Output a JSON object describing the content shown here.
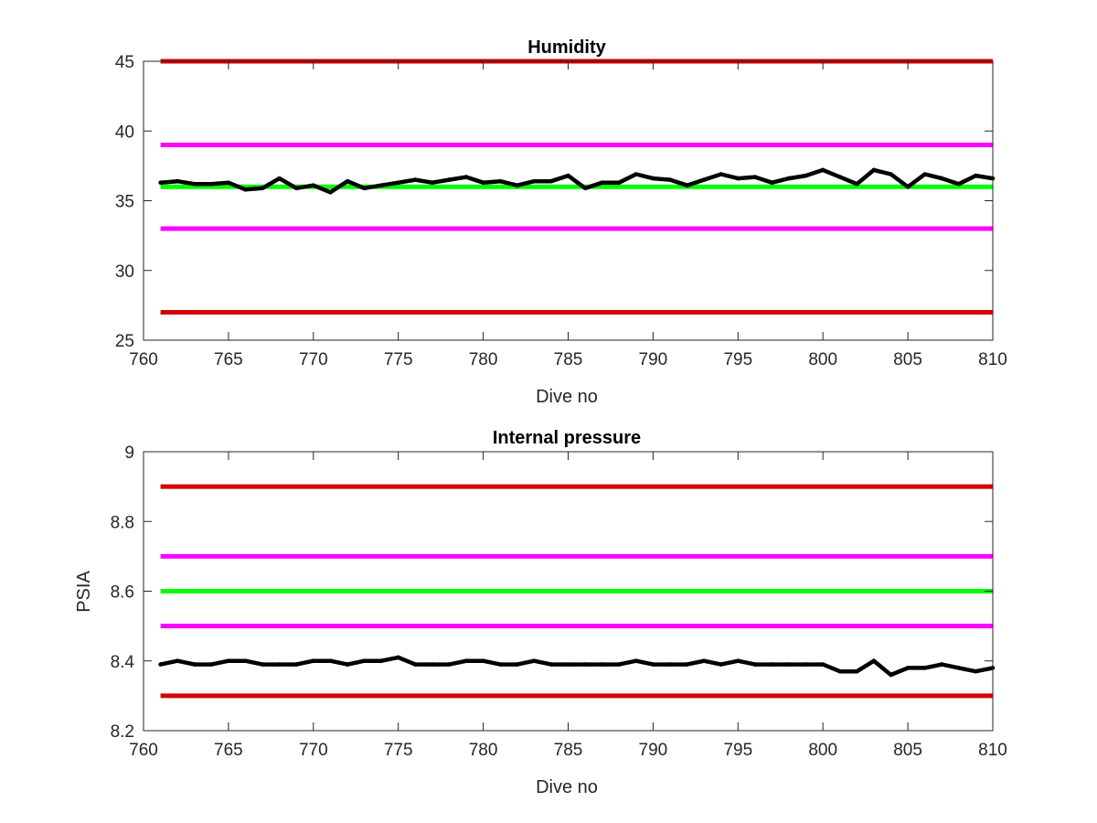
{
  "colors": {
    "background": "#ffffff",
    "axis": "#262626",
    "data_line": "#000000",
    "red_limit": "#d40000",
    "magenta_limit": "#ff00ff",
    "green_target": "#00ff00"
  },
  "chart_data": [
    {
      "type": "line",
      "title": "Humidity",
      "xlabel": "Dive no",
      "ylabel": "",
      "xlim": [
        760,
        810
      ],
      "ylim": [
        25,
        45
      ],
      "xticks": [
        760,
        765,
        770,
        775,
        780,
        785,
        790,
        795,
        800,
        805,
        810
      ],
      "yticks": [
        25,
        30,
        35,
        40,
        45
      ],
      "grid": false,
      "legend": "none",
      "reference_lines": [
        {
          "name": "upper-red-limit",
          "y": 45,
          "color": "#d40000",
          "x": [
            761,
            810
          ]
        },
        {
          "name": "upper-magenta-limit",
          "y": 39,
          "color": "#ff00ff",
          "x": [
            761,
            810
          ]
        },
        {
          "name": "green-target",
          "y": 36,
          "color": "#00ff00",
          "x": [
            761,
            810
          ]
        },
        {
          "name": "lower-magenta-limit",
          "y": 33,
          "color": "#ff00ff",
          "x": [
            761,
            810
          ]
        },
        {
          "name": "lower-red-limit",
          "y": 27,
          "color": "#d40000",
          "x": [
            761,
            810
          ]
        }
      ],
      "series": [
        {
          "color": "#000000",
          "x": [
            761,
            762,
            763,
            764,
            765,
            766,
            767,
            768,
            769,
            770,
            771,
            772,
            773,
            774,
            775,
            776,
            777,
            778,
            779,
            780,
            781,
            782,
            783,
            784,
            785,
            786,
            787,
            788,
            789,
            790,
            791,
            792,
            793,
            794,
            795,
            796,
            797,
            798,
            799,
            800,
            801,
            802,
            803,
            804,
            805,
            806,
            807,
            808,
            809,
            810
          ],
          "y": [
            36.3,
            36.4,
            36.2,
            36.2,
            36.3,
            35.8,
            35.9,
            36.6,
            35.9,
            36.1,
            35.6,
            36.4,
            35.9,
            36.1,
            36.3,
            36.5,
            36.3,
            36.5,
            36.7,
            36.3,
            36.4,
            36.1,
            36.4,
            36.4,
            36.8,
            35.9,
            36.3,
            36.3,
            36.9,
            36.6,
            36.5,
            36.1,
            36.5,
            36.9,
            36.6,
            36.7,
            36.3,
            36.6,
            36.8,
            37.2,
            36.7,
            36.2,
            37.2,
            36.9,
            36.0,
            36.9,
            36.6,
            36.2,
            36.8,
            36.6
          ]
        }
      ]
    },
    {
      "type": "line",
      "title": "Internal pressure",
      "xlabel": "Dive no",
      "ylabel": "PSIA",
      "xlim": [
        760,
        810
      ],
      "ylim": [
        8.2,
        9
      ],
      "xticks": [
        760,
        765,
        770,
        775,
        780,
        785,
        790,
        795,
        800,
        805,
        810
      ],
      "yticks": [
        8.2,
        8.4,
        8.6,
        8.8,
        9
      ],
      "grid": false,
      "legend": "none",
      "reference_lines": [
        {
          "name": "upper-red-limit",
          "y": 8.9,
          "color": "#d40000",
          "x": [
            761,
            810
          ]
        },
        {
          "name": "upper-magenta-limit",
          "y": 8.7,
          "color": "#ff00ff",
          "x": [
            761,
            810
          ]
        },
        {
          "name": "green-target",
          "y": 8.6,
          "color": "#00ff00",
          "x": [
            761,
            810
          ]
        },
        {
          "name": "lower-magenta-limit",
          "y": 8.5,
          "color": "#ff00ff",
          "x": [
            761,
            810
          ]
        },
        {
          "name": "lower-red-limit",
          "y": 8.3,
          "color": "#d40000",
          "x": [
            761,
            810
          ]
        }
      ],
      "series": [
        {
          "color": "#000000",
          "x": [
            761,
            762,
            763,
            764,
            765,
            766,
            767,
            768,
            769,
            770,
            771,
            772,
            773,
            774,
            775,
            776,
            777,
            778,
            779,
            780,
            781,
            782,
            783,
            784,
            785,
            786,
            787,
            788,
            789,
            790,
            791,
            792,
            793,
            794,
            795,
            796,
            797,
            798,
            799,
            800,
            801,
            802,
            803,
            804,
            805,
            806,
            807,
            808,
            809,
            810
          ],
          "y": [
            8.39,
            8.4,
            8.39,
            8.39,
            8.4,
            8.4,
            8.39,
            8.39,
            8.39,
            8.4,
            8.4,
            8.39,
            8.4,
            8.4,
            8.41,
            8.39,
            8.39,
            8.39,
            8.4,
            8.4,
            8.39,
            8.39,
            8.4,
            8.39,
            8.39,
            8.39,
            8.39,
            8.39,
            8.4,
            8.39,
            8.39,
            8.39,
            8.4,
            8.39,
            8.4,
            8.39,
            8.39,
            8.39,
            8.39,
            8.39,
            8.37,
            8.37,
            8.4,
            8.36,
            8.38,
            8.38,
            8.39,
            8.38,
            8.37,
            8.38
          ]
        }
      ]
    }
  ]
}
